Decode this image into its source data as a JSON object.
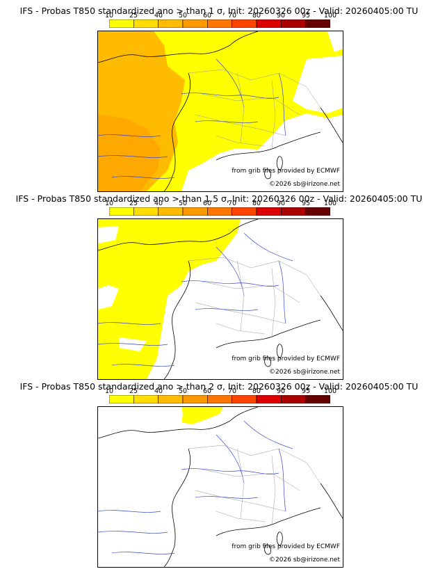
{
  "colorbar": {
    "ticks": [
      "10",
      "25",
      "40",
      "50",
      "60",
      "70",
      "80",
      "90",
      "95",
      "100"
    ],
    "colors": [
      "#ffff00",
      "#ffdd00",
      "#ffbb00",
      "#ff9900",
      "#ff7700",
      "#ff4400",
      "#dd0000",
      "#aa0000",
      "#660000"
    ]
  },
  "panels": [
    {
      "title": "IFS - Probas T850  standardized ano > than 1 σ, Init: 20260326 00z - Valid: 20260405:00 TU",
      "threshold_sigma": 1,
      "source": "from grib files provided by ECMWF",
      "copyright": "©2026 sb@irizone.net"
    },
    {
      "title": "IFS - Probas T850  standardized ano > than 1.5 σ, Init: 20260326 00z - Valid: 20260405:00 TU",
      "threshold_sigma": 1.5,
      "source": "from grib files provided by ECMWF",
      "copyright": "©2026 sb@irizone.net"
    },
    {
      "title": "IFS - Probas T850  standardized ano > than 2 σ, Init: 20260326 00z - Valid: 20260405:00 TU",
      "threshold_sigma": 2,
      "source": "from grib files provided by ECMWF",
      "copyright": "©2026 sb@irizone.net"
    }
  ]
}
